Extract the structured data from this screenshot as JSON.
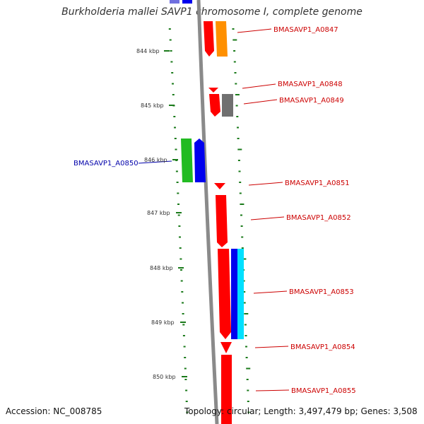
{
  "title": "Burkholderia mallei SAVP1 chromosome I, complete genome",
  "footer": {
    "accession_label": "Accession:",
    "accession": "NC_008785",
    "topology_label": "Topology:",
    "topology": "circular",
    "length_label": "Length:",
    "length": "3,497,479 bp",
    "genes_label": "Genes:",
    "genes": "3,508"
  },
  "colors": {
    "backbone": "#8a8a8a",
    "forward_gene_label": "#cc0000",
    "reverse_gene_label": "#0000aa",
    "tick": "#1a7a1a"
  },
  "ruler": {
    "unit": "kbp",
    "ticks": [
      {
        "label": "844 kbp",
        "value": 844
      },
      {
        "label": "845 kbp",
        "value": 845
      },
      {
        "label": "846 kbp",
        "value": 846
      },
      {
        "label": "847 kbp",
        "value": 847
      },
      {
        "label": "848 kbp",
        "value": 848
      },
      {
        "label": "849 kbp",
        "value": 849
      },
      {
        "label": "850 kbp",
        "value": 850
      }
    ]
  },
  "genes": [
    {
      "label": "BMASAVP1_A0847",
      "strand": "+"
    },
    {
      "label": "BMASAVP1_A0848",
      "strand": "+"
    },
    {
      "label": "BMASAVP1_A0849",
      "strand": "+"
    },
    {
      "label": "BMASAVP1_A0850",
      "strand": "-"
    },
    {
      "label": "BMASAVP1_A0851",
      "strand": "+"
    },
    {
      "label": "BMASAVP1_A0852",
      "strand": "+"
    },
    {
      "label": "BMASAVP1_A0853",
      "strand": "+"
    },
    {
      "label": "BMASAVP1_A0854",
      "strand": "+"
    },
    {
      "label": "BMASAVP1_A0855",
      "strand": "+"
    }
  ]
}
